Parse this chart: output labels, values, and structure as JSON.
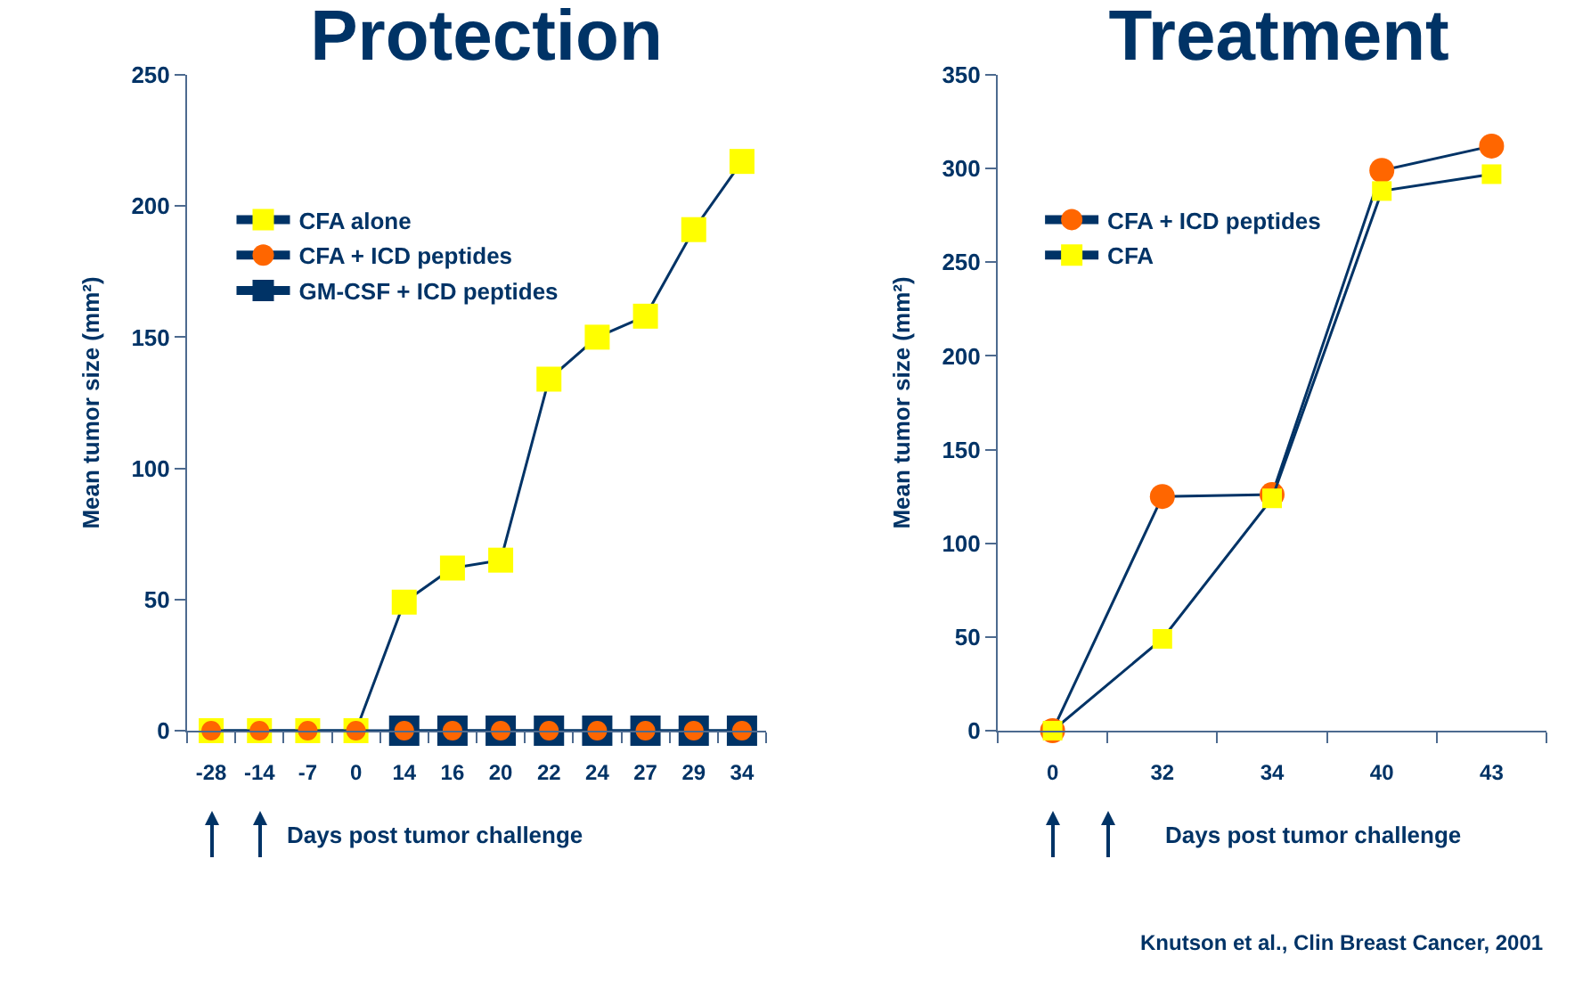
{
  "chart_data": [
    {
      "type": "line",
      "title": "Protection",
      "xlabel": "Days post tumor challenge",
      "ylabel": "Mean tumor size (mm²)",
      "categories": [
        "-28",
        "-14",
        "-7",
        "0",
        "14",
        "16",
        "20",
        "22",
        "24",
        "27",
        "29",
        "34"
      ],
      "ylim": [
        0,
        250
      ],
      "yticks": [
        0,
        50,
        100,
        150,
        200,
        250
      ],
      "grid": false,
      "legend": "top left",
      "series": [
        {
          "name": "CFA alone",
          "color": "#ffff00",
          "marker": "square",
          "values": [
            0,
            0,
            0,
            0,
            49,
            62,
            65,
            134,
            150,
            158,
            191,
            217
          ]
        },
        {
          "name": "CFA + ICD peptides",
          "color": "#ff6600",
          "marker": "circle",
          "values": [
            0,
            0,
            0,
            0,
            0,
            0,
            0,
            0,
            0,
            0,
            0,
            0
          ]
        },
        {
          "name": "GM-CSF + ICD peptides",
          "color": "#003366",
          "marker": "square",
          "values": [
            null,
            null,
            null,
            null,
            0,
            0,
            0,
            0,
            0,
            0,
            0,
            0
          ]
        }
      ]
    },
    {
      "type": "line",
      "title": "Treatment",
      "xlabel": "Days post tumor challenge",
      "ylabel": "Mean tumor size (mm²)",
      "categories": [
        "0",
        "32",
        "34",
        "40",
        "43"
      ],
      "ylim": [
        0,
        350
      ],
      "yticks": [
        0,
        50,
        100,
        150,
        200,
        250,
        300,
        350
      ],
      "grid": false,
      "legend": "top left",
      "annotations": [
        "Knutson et al., Clin Breast Cancer, 2001"
      ],
      "series": [
        {
          "name": "CFA + ICD peptides",
          "color": "#ff6600",
          "marker": "circle",
          "values": [
            0,
            125,
            126,
            299,
            312
          ]
        },
        {
          "name": "CFA",
          "color": "#ffff00",
          "marker": "square",
          "values": [
            0,
            49,
            124,
            288,
            297
          ]
        }
      ]
    }
  ]
}
